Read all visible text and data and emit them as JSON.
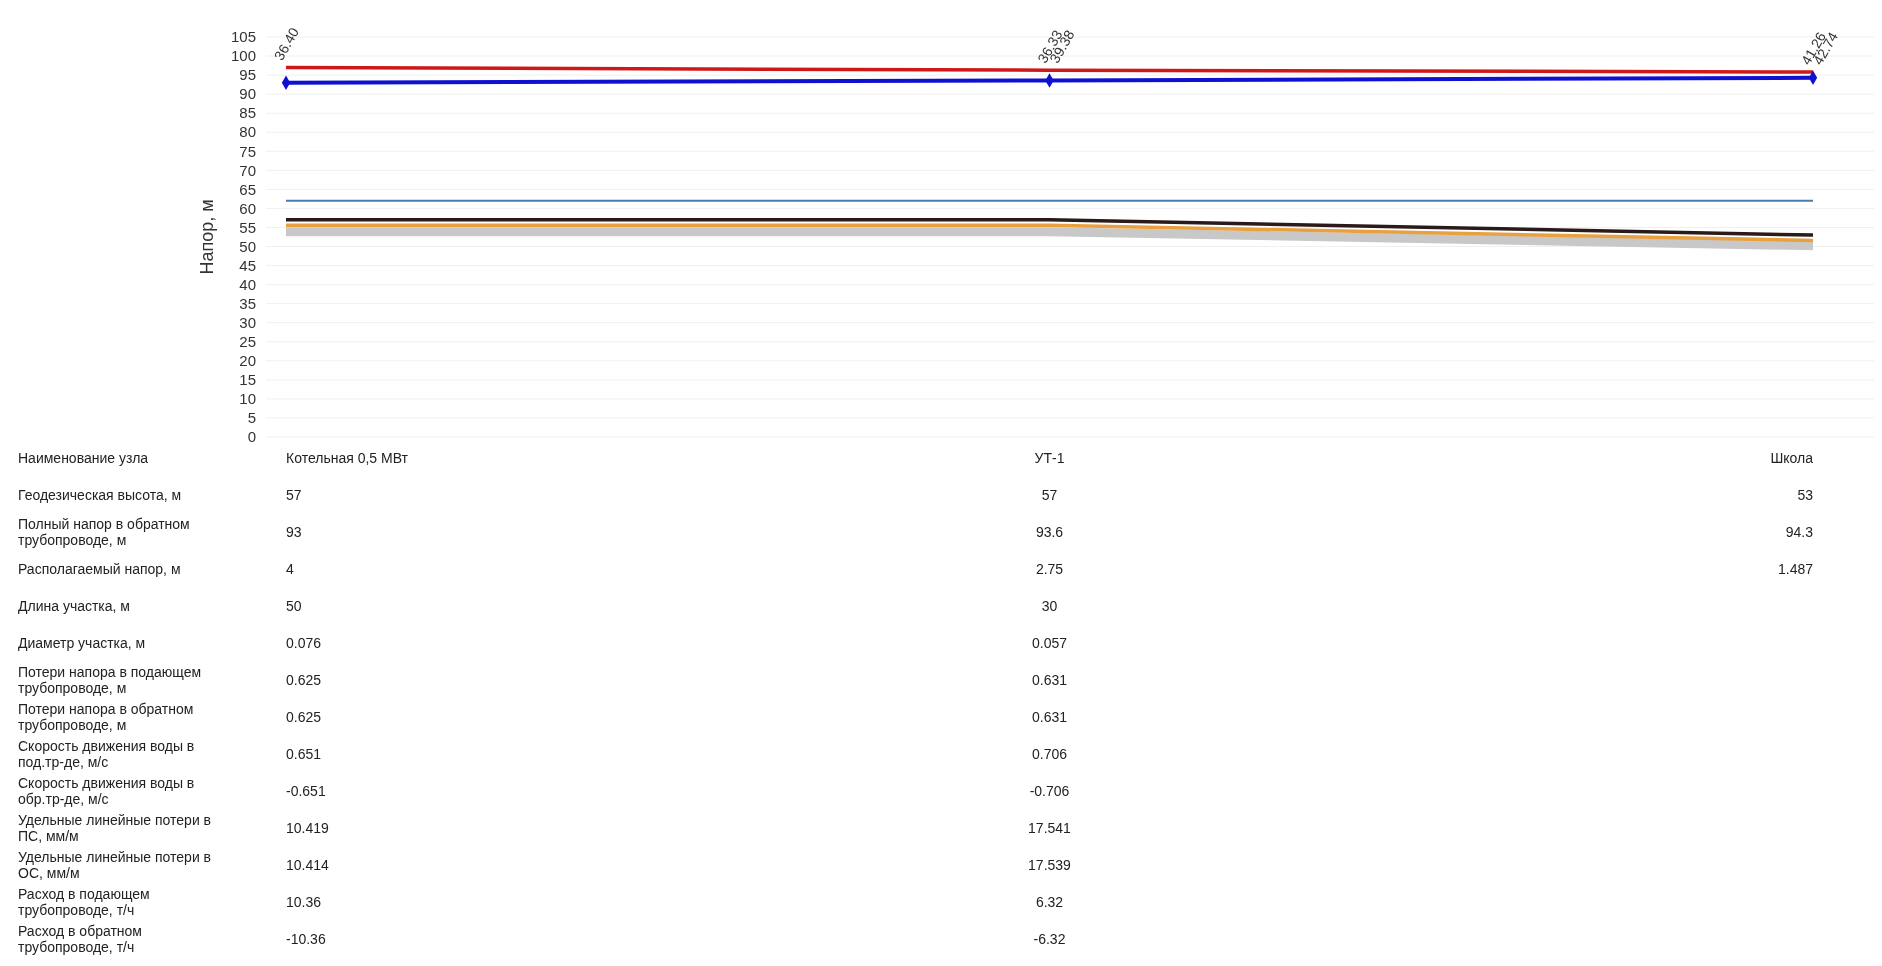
{
  "chart_data": [
    {
      "type": "line",
      "ylabel": "Напор, м",
      "categories": [
        null,
        null,
        null
      ],
      "ylim": [
        0,
        105
      ],
      "yticks": [
        0,
        5,
        10,
        15,
        20,
        25,
        30,
        35,
        40,
        45,
        50,
        55,
        60,
        65,
        70,
        75,
        80,
        85,
        90,
        95,
        100,
        105
      ],
      "grid": "y",
      "series": [
        {
          "color": "#c8c8c8",
          "values": [
            53.9,
            53.9,
            50.2
          ],
          "marker": "none"
        },
        {
          "color": "#e8a040",
          "values": [
            55.6,
            55.6,
            51.6
          ],
          "marker": "none"
        },
        {
          "color": "#2a1a1a",
          "values": [
            57,
            57,
            53
          ],
          "marker": "none"
        },
        {
          "color": "#d01818",
          "values": [
            97,
            96.3,
            95.8
          ],
          "marker": "none"
        },
        {
          "color": "#1010d0",
          "values": [
            93,
            93.6,
            94.3
          ],
          "marker": "diamond"
        }
      ],
      "ref_lines": [
        {
          "axis": "y",
          "value": 62,
          "color": "#4a7ab0"
        }
      ],
      "annotations": [
        "36.40",
        "36.33",
        "39.38",
        "41.26",
        "42.74"
      ]
    },
    {
      "type": "other",
      "categories": [
        "Котельная 0,5 МВт",
        "УТ-1",
        "Школа"
      ],
      "legend_title": "Наименование узла",
      "data_labels": true,
      "series": [
        {
          "name": "Геодезическая высота, м",
          "values": [
            57,
            57,
            53
          ]
        },
        {
          "name": "Полный напор в обратном трубопроводе, м",
          "values": [
            93,
            93.6,
            94.3
          ]
        },
        {
          "name": "Располагаемый напор, м",
          "values": [
            4,
            2.75,
            1.487
          ]
        },
        {
          "name": "Длина участка, м",
          "values": [
            50,
            30,
            null
          ]
        },
        {
          "name": "Диаметр участка, м",
          "values": [
            0.076,
            0.057,
            null
          ]
        },
        {
          "name": "Потери напора в подающем трубопроводе, м",
          "values": [
            0.625,
            0.631,
            null
          ]
        },
        {
          "name": "Потери напора в обратном трубопроводе, м",
          "values": [
            0.625,
            0.631,
            null
          ]
        },
        {
          "name": "Скорость движения воды в под.тр-де, м/с",
          "values": [
            0.651,
            0.706,
            null
          ]
        },
        {
          "name": "Скорость движения воды в обр.тр-де, м/с",
          "values": [
            -0.651,
            -0.706,
            null
          ]
        },
        {
          "name": "Удельные линейные потери в ПС, мм/м",
          "values": [
            10.419,
            17.541,
            null
          ]
        },
        {
          "name": "Удельные линейные потери в ОС, мм/м",
          "values": [
            10.414,
            17.539,
            null
          ]
        },
        {
          "name": "Расход в подающем трубопроводе, т/ч",
          "values": [
            10.36,
            6.32,
            null
          ]
        },
        {
          "name": "Расход в обратном трубопроводе, т/ч",
          "values": [
            -10.36,
            -6.32,
            null
          ]
        }
      ]
    }
  ]
}
